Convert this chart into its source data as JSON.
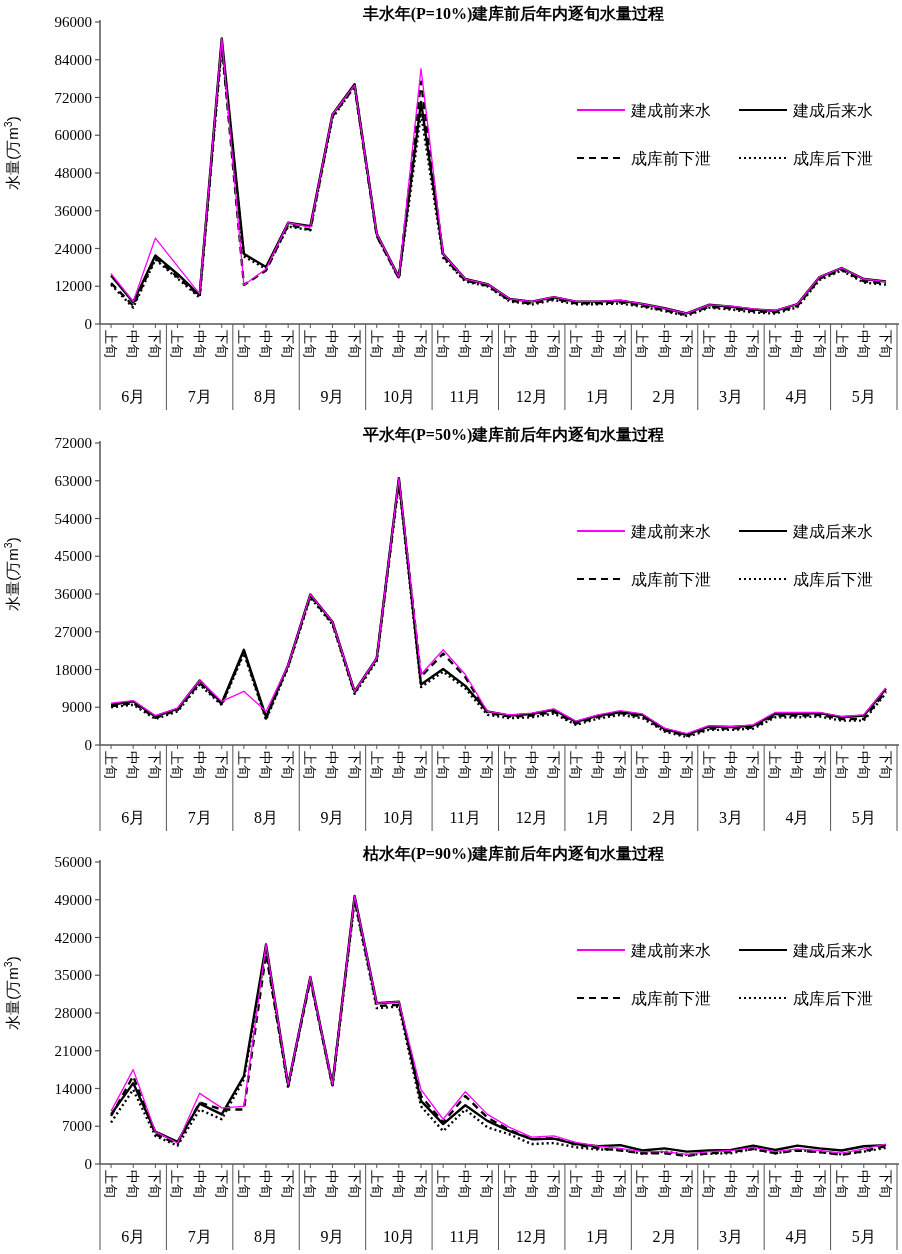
{
  "chart_data": [
    {
      "type": "line",
      "title": "丰水年(P=10%)建库前后年内逐旬水量过程",
      "ylabel": "水量(万m$^{3}$)",
      "legend": "top right",
      "ylim": [
        0,
        96000
      ],
      "yticks": [
        0,
        12000,
        24000,
        36000,
        48000,
        60000,
        72000,
        84000,
        96000
      ],
      "categories": [
        "上旬",
        "中旬",
        "下旬",
        "上旬",
        "中旬",
        "下旬",
        "上旬",
        "中旬",
        "下旬",
        "上旬",
        "中旬",
        "下旬",
        "上旬",
        "中旬",
        "下旬",
        "上旬",
        "中旬",
        "下旬",
        "上旬",
        "中旬",
        "下旬",
        "上旬",
        "中旬",
        "下旬",
        "上旬",
        "中旬",
        "下旬",
        "上旬",
        "中旬",
        "下旬",
        "上旬",
        "中旬",
        "下旬",
        "上旬",
        "中旬",
        "下旬"
      ],
      "annotations": [
        "6月",
        "7月",
        "8月",
        "9月",
        "10月",
        "11月",
        "12月",
        "1月",
        "2月",
        "3月",
        "4月",
        "5月"
      ],
      "series": [
        {
          "name": "建成前来水",
          "color": "#ff00ff",
          "line_style": "solid",
          "values": [
            16000,
            7100,
            27300,
            18400,
            9600,
            90800,
            12400,
            17500,
            32200,
            30800,
            66600,
            75900,
            28700,
            14900,
            81200,
            22300,
            14300,
            12700,
            8000,
            7100,
            8600,
            7200,
            7200,
            7600,
            6400,
            5000,
            3400,
            6100,
            5700,
            4800,
            4300,
            6300,
            15000,
            17800,
            14300,
            13500
          ]
        },
        {
          "name": "建成后来水",
          "color": "#000000",
          "line_style": "solid",
          "values": [
            15400,
            6900,
            21800,
            15900,
            9200,
            90800,
            22300,
            18100,
            32200,
            31100,
            66600,
            76200,
            28700,
            14900,
            70600,
            22300,
            14300,
            12700,
            8000,
            7100,
            8500,
            7100,
            7100,
            7400,
            6400,
            5000,
            3400,
            6100,
            5500,
            4600,
            4200,
            6300,
            14900,
            17800,
            14300,
            13500
          ]
        },
        {
          "name": "成库前下泄",
          "color": "#000000",
          "line_style": "dashed",
          "values": [
            13000,
            5800,
            21000,
            15000,
            8800,
            89000,
            12400,
            17000,
            31500,
            30000,
            66000,
            75500,
            28000,
            14500,
            77000,
            21500,
            13800,
            12200,
            7500,
            6500,
            8000,
            6600,
            6600,
            6900,
            5800,
            4400,
            2900,
            5500,
            5000,
            4100,
            3700,
            5700,
            14400,
            17300,
            13600,
            12800
          ]
        },
        {
          "name": "成库后下泄",
          "color": "#000000",
          "line_style": "dotted",
          "values": [
            12500,
            5200,
            20500,
            14500,
            8400,
            88000,
            21500,
            17500,
            31000,
            29800,
            65500,
            75500,
            28000,
            14500,
            67000,
            21000,
            13500,
            12000,
            7200,
            6200,
            7600,
            6300,
            6300,
            6500,
            5500,
            4100,
            2600,
            5200,
            4600,
            3700,
            3300,
            5300,
            14000,
            17000,
            13200,
            12500
          ]
        }
      ]
    },
    {
      "type": "line",
      "title": "平水年(P=50%)建库前后年内逐旬水量过程",
      "ylabel": "水量(万m$^{3}$)",
      "legend": "top right",
      "ylim": [
        0,
        72000
      ],
      "yticks": [
        0,
        9000,
        18000,
        27000,
        36000,
        45000,
        54000,
        63000,
        72000
      ],
      "categories": [
        "上旬",
        "中旬",
        "下旬",
        "上旬",
        "中旬",
        "下旬",
        "上旬",
        "中旬",
        "下旬",
        "上旬",
        "中旬",
        "下旬",
        "上旬",
        "中旬",
        "下旬",
        "上旬",
        "中旬",
        "下旬",
        "上旬",
        "中旬",
        "下旬",
        "上旬",
        "中旬",
        "下旬",
        "上旬",
        "中旬",
        "下旬",
        "上旬",
        "中旬",
        "下旬",
        "上旬",
        "中旬",
        "下旬",
        "上旬",
        "中旬",
        "下旬"
      ],
      "annotations": [
        "6月",
        "7月",
        "8月",
        "9月",
        "10月",
        "11月",
        "12月",
        "1月",
        "2月",
        "3月",
        "4月",
        "5月"
      ],
      "series": [
        {
          "name": "建成前来水",
          "color": "#ff00ff",
          "line_style": "solid",
          "values": [
            10000,
            10600,
            7000,
            8800,
            15400,
            10400,
            12800,
            8000,
            19100,
            35900,
            29400,
            12800,
            20700,
            63600,
            16800,
            22700,
            16800,
            8000,
            7200,
            7600,
            8600,
            5700,
            7200,
            8200,
            7400,
            4000,
            2700,
            4600,
            4400,
            4800,
            7800,
            7800,
            7800,
            6800,
            7200,
            13600
          ]
        },
        {
          "name": "建成后来水",
          "color": "#000000",
          "line_style": "solid",
          "values": [
            9600,
            10400,
            6800,
            8600,
            15400,
            10000,
            22700,
            6700,
            19100,
            35900,
            29400,
            12800,
            20700,
            63600,
            14400,
            18100,
            14100,
            8000,
            7000,
            7400,
            8400,
            5500,
            7000,
            7800,
            7200,
            3800,
            2500,
            4400,
            4300,
            4600,
            7400,
            7400,
            7600,
            6600,
            7000,
            13400
          ]
        },
        {
          "name": "成库前下泄",
          "color": "#000000",
          "line_style": "dashed",
          "values": [
            9200,
            10000,
            6500,
            8300,
            14800,
            9800,
            22300,
            6300,
            18800,
            35500,
            29000,
            12500,
            20400,
            63000,
            16300,
            21800,
            16200,
            7600,
            6800,
            7000,
            7900,
            5100,
            6700,
            7600,
            6800,
            3500,
            2200,
            3900,
            3900,
            4200,
            7000,
            7000,
            7200,
            6200,
            6200,
            12800
          ]
        },
        {
          "name": "成库后下泄",
          "color": "#000000",
          "line_style": "dotted",
          "values": [
            9000,
            9600,
            6200,
            8000,
            14400,
            9500,
            21800,
            6000,
            18500,
            35200,
            28700,
            12200,
            20000,
            62500,
            13800,
            17500,
            13500,
            7200,
            6400,
            6600,
            7500,
            4800,
            6300,
            7200,
            6400,
            3200,
            1900,
            3600,
            3600,
            3900,
            6600,
            6600,
            6800,
            5800,
            5800,
            12400
          ]
        }
      ]
    },
    {
      "type": "line",
      "title": "枯水年(P=90%)建库前后年内逐旬水量过程",
      "ylabel": "水量(万m$^{3}$)",
      "legend": "top right",
      "ylim": [
        0,
        56000
      ],
      "yticks": [
        0,
        7000,
        14000,
        21000,
        28000,
        35000,
        42000,
        49000,
        56000
      ],
      "categories": [
        "上旬",
        "中旬",
        "下旬",
        "上旬",
        "中旬",
        "下旬",
        "上旬",
        "中旬",
        "下旬",
        "上旬",
        "中旬",
        "下旬",
        "上旬",
        "中旬",
        "下旬",
        "上旬",
        "中旬",
        "下旬",
        "上旬",
        "中旬",
        "下旬",
        "上旬",
        "中旬",
        "下旬",
        "上旬",
        "中旬",
        "下旬",
        "上旬",
        "中旬",
        "下旬",
        "上旬",
        "中旬",
        "下旬",
        "上旬",
        "中旬",
        "下旬"
      ],
      "annotations": [
        "6月",
        "7月",
        "8月",
        "9月",
        "10月",
        "11月",
        "12月",
        "1月",
        "2月",
        "3月",
        "4月",
        "5月"
      ],
      "series": [
        {
          "name": "建成前来水",
          "color": "#ff00ff",
          "line_style": "solid",
          "values": [
            9800,
            17500,
            6000,
            3900,
            13100,
            10400,
            10700,
            40700,
            14700,
            34700,
            14700,
            49700,
            29800,
            30100,
            13800,
            8300,
            13400,
            9200,
            6800,
            5000,
            5200,
            4000,
            3300,
            2900,
            2300,
            2300,
            1800,
            2300,
            2500,
            3100,
            2300,
            2800,
            2500,
            2000,
            2800,
            3700
          ]
        },
        {
          "name": "建成后来水",
          "color": "#000000",
          "line_style": "solid",
          "values": [
            9200,
            15000,
            6000,
            4100,
            11200,
            9200,
            16300,
            40700,
            14700,
            34700,
            14700,
            49700,
            29800,
            30100,
            11700,
            7400,
            10900,
            8000,
            6100,
            4600,
            4700,
            3700,
            3300,
            3500,
            2500,
            2900,
            2300,
            2500,
            2600,
            3400,
            2600,
            3400,
            2900,
            2500,
            3300,
            3500
          ]
        },
        {
          "name": "成库前下泄",
          "color": "#000000",
          "line_style": "dashed",
          "values": [
            8900,
            16300,
            5500,
            3700,
            11400,
            10100,
            10100,
            39000,
            14400,
            34100,
            14600,
            49100,
            29300,
            29500,
            12600,
            7700,
            12600,
            8600,
            6300,
            4600,
            4800,
            3600,
            2900,
            2500,
            2000,
            2000,
            1500,
            2000,
            2200,
            2800,
            2000,
            2500,
            2200,
            1700,
            2400,
            3300
          ]
        },
        {
          "name": "成库后下泄",
          "color": "#000000",
          "line_style": "dotted",
          "values": [
            7700,
            13800,
            5200,
            3400,
            10100,
            8300,
            15700,
            39600,
            14100,
            34400,
            14400,
            48800,
            28900,
            29200,
            10700,
            6100,
            10100,
            6800,
            5500,
            3700,
            3900,
            3100,
            2700,
            2700,
            1900,
            2300,
            1700,
            1900,
            2000,
            2800,
            2000,
            2600,
            2200,
            1800,
            2300,
            3000
          ]
        }
      ]
    }
  ]
}
